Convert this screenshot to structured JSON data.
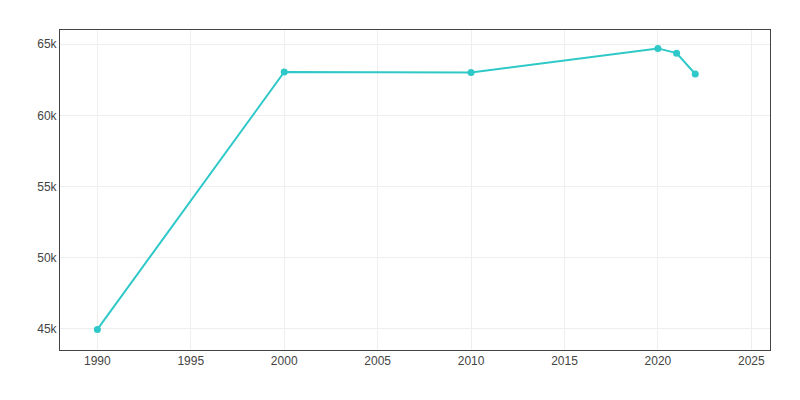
{
  "chart_data": {
    "type": "line",
    "x": [
      1990,
      2000,
      2010,
      2020,
      2021,
      2022
    ],
    "values": [
      44949,
      63048,
      63018,
      64706,
      64372,
      62909
    ],
    "color": "#2ec8c8",
    "marker": "circle",
    "xlim": [
      1988,
      2026
    ],
    "ylim": [
      43500,
      66000
    ],
    "xticks": [
      1990,
      1995,
      2000,
      2005,
      2010,
      2015,
      2020,
      2025
    ],
    "yticks": [
      {
        "value": 45000,
        "label": "45k"
      },
      {
        "value": 50000,
        "label": "50k"
      },
      {
        "value": 55000,
        "label": "55k"
      },
      {
        "value": 60000,
        "label": "60k"
      },
      {
        "value": 65000,
        "label": "65k"
      }
    ],
    "grid": true
  }
}
